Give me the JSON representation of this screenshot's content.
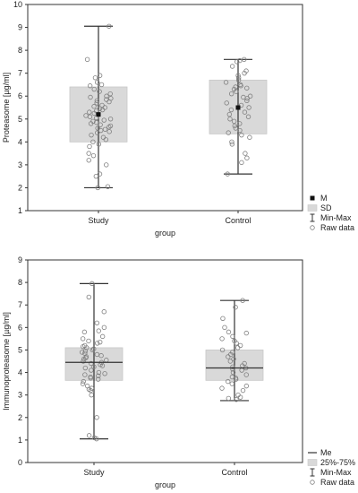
{
  "chart_data": [
    {
      "type": "box",
      "ylabel": "Proteasome [µg/ml]",
      "xlabel": "group",
      "categories": [
        "Study",
        "Control"
      ],
      "ylim": [
        1,
        10
      ],
      "yticks": [
        1,
        2,
        3,
        4,
        5,
        6,
        7,
        8,
        9,
        10
      ],
      "grid": false,
      "legend": {
        "position": "right-bottom",
        "entries": [
          "M",
          "SD",
          "Min-Max",
          "Raw data"
        ]
      },
      "boxes": [
        {
          "category": "Study",
          "center": 5.2,
          "center_type": "mean",
          "box_low": 4.0,
          "box_high": 6.4,
          "min": 2.0,
          "max": 9.05
        },
        {
          "category": "Control",
          "center": 5.5,
          "center_type": "mean",
          "box_low": 4.35,
          "box_high": 6.7,
          "min": 2.6,
          "max": 7.6
        }
      ],
      "raw_points": [
        [
          9.05,
          7.6,
          6.9,
          6.8,
          6.6,
          6.5,
          6.45,
          6.3,
          6.2,
          6.1,
          6.0,
          5.95,
          5.9,
          5.85,
          5.8,
          5.75,
          5.7,
          5.6,
          5.55,
          5.5,
          5.45,
          5.4,
          5.35,
          5.3,
          5.25,
          5.2,
          5.15,
          5.1,
          5.05,
          5.0,
          4.95,
          4.9,
          4.85,
          4.8,
          4.75,
          4.7,
          4.65,
          4.6,
          4.55,
          4.5,
          4.45,
          4.4,
          4.3,
          4.2,
          4.1,
          4.0,
          3.9,
          3.8,
          3.5,
          3.4,
          3.2,
          3.0,
          2.6,
          2.5,
          2.05,
          2.0
        ],
        [
          7.6,
          7.55,
          7.5,
          7.3,
          7.1,
          7.0,
          6.9,
          6.8,
          6.7,
          6.6,
          6.5,
          6.45,
          6.4,
          6.35,
          6.3,
          6.2,
          6.1,
          6.0,
          5.95,
          5.9,
          5.8,
          5.7,
          5.6,
          5.5,
          5.4,
          5.3,
          5.2,
          5.1,
          5.0,
          4.9,
          4.8,
          4.7,
          4.6,
          4.5,
          4.4,
          4.3,
          4.2,
          4.0,
          3.9,
          3.5,
          3.3,
          3.1,
          2.6
        ]
      ]
    },
    {
      "type": "box",
      "ylabel": "Immunoproteasome [µg/ml]",
      "xlabel": "group",
      "categories": [
        "Study",
        "Control"
      ],
      "ylim": [
        0,
        9
      ],
      "yticks": [
        0,
        1,
        2,
        3,
        4,
        5,
        6,
        7,
        8,
        9
      ],
      "grid": false,
      "legend": {
        "position": "right-bottom",
        "entries": [
          "Me",
          "25%-75%",
          "Min-Max",
          "Raw data"
        ]
      },
      "boxes": [
        {
          "category": "Study",
          "center": 4.45,
          "center_type": "median",
          "box_low": 3.65,
          "box_high": 5.1,
          "min": 1.05,
          "max": 7.95
        },
        {
          "category": "Control",
          "center": 4.2,
          "center_type": "median",
          "box_low": 3.65,
          "box_high": 5.0,
          "min": 2.75,
          "max": 7.2
        }
      ],
      "raw_points": [
        [
          7.95,
          7.35,
          6.7,
          6.2,
          6.0,
          5.85,
          5.8,
          5.6,
          5.5,
          5.4,
          5.35,
          5.3,
          5.2,
          5.15,
          5.1,
          5.05,
          5.0,
          4.95,
          4.9,
          4.85,
          4.8,
          4.75,
          4.7,
          4.65,
          4.6,
          4.55,
          4.5,
          4.45,
          4.4,
          4.35,
          4.3,
          4.25,
          4.2,
          4.1,
          4.0,
          3.95,
          3.9,
          3.85,
          3.8,
          3.75,
          3.7,
          3.6,
          3.5,
          3.4,
          3.3,
          3.25,
          3.2,
          3.0,
          2.0,
          1.2,
          1.1,
          1.05
        ],
        [
          7.2,
          6.9,
          6.4,
          6.0,
          5.8,
          5.75,
          5.6,
          5.5,
          5.4,
          5.3,
          5.2,
          5.1,
          5.0,
          4.9,
          4.8,
          4.7,
          4.6,
          4.5,
          4.4,
          4.3,
          4.25,
          4.2,
          4.15,
          4.1,
          4.0,
          3.9,
          3.8,
          3.75,
          3.7,
          3.6,
          3.5,
          3.4,
          3.3,
          3.2,
          3.0,
          2.9,
          2.85,
          2.8
        ]
      ]
    }
  ]
}
